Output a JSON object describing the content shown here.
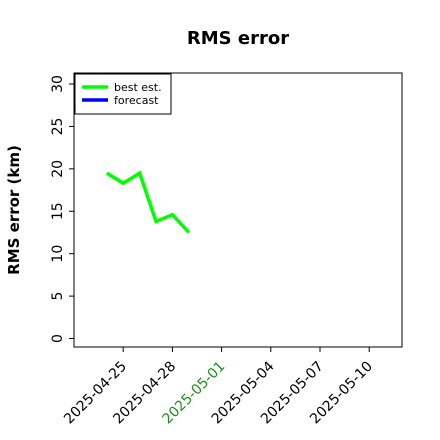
{
  "chart_data": {
    "type": "line",
    "title": "RMS error",
    "ylabel": "RMS error (km)",
    "series": [
      {
        "name": "best est.",
        "color": "#00ff00",
        "x": [
          "2025-04-24",
          "2025-04-25",
          "2025-04-26",
          "2025-04-27",
          "2025-04-28",
          "2025-04-29"
        ],
        "values": [
          19.5,
          18.3,
          19.5,
          13.8,
          14.6,
          12.5
        ]
      },
      {
        "name": "forecast",
        "color": "#0000ff",
        "x": [],
        "values": []
      }
    ],
    "xlim": [
      "2025-04-22",
      "2025-05-12"
    ],
    "xticks": [
      "2025-04-25",
      "2025-04-28",
      "2025-05-01",
      "2025-05-04",
      "2025-05-07",
      "2025-05-10"
    ],
    "highlight_xtick": "2025-05-01",
    "highlight_color": "#228b22",
    "ylim": [
      -1,
      31.3
    ],
    "yticks": [
      0,
      5,
      10,
      15,
      20,
      25,
      30
    ],
    "legend": "upper left",
    "grid": false
  }
}
